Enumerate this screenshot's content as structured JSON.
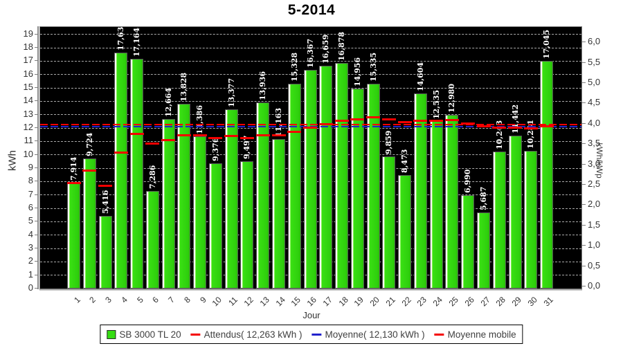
{
  "title": "5-2014",
  "axes": {
    "x_label": "Jour",
    "y_left_label": "kWh",
    "y_right_label": "kWh/kWp",
    "y_left_ticks": [
      "0",
      "1",
      "2",
      "3",
      "4",
      "5",
      "6",
      "7",
      "8",
      "9",
      "10",
      "11",
      "12",
      "13",
      "14",
      "15",
      "16",
      "17",
      "18",
      "19"
    ],
    "y_right_ticks": [
      "0,0",
      "0,5",
      "1,0",
      "1,5",
      "2,0",
      "2,5",
      "3,0",
      "3,5",
      "4,0",
      "4,5",
      "5,0",
      "5,5",
      "6,0"
    ]
  },
  "legend": {
    "items": [
      {
        "label": "SB 3000 TL 20",
        "swatch": "green-square"
      },
      {
        "label": "Attendus( 12,263 kWh )",
        "swatch": "red-dash"
      },
      {
        "label": "Moyenne( 12,130 kWh )",
        "swatch": "blue-dash"
      },
      {
        "label": "Moyenne mobile",
        "swatch": "red-dash"
      }
    ]
  },
  "colors": {
    "bar_green": "#35dd12",
    "attendus_red": "#f40000",
    "moyenne_blue": "#2222cc",
    "moyenne_mobile_red": "#f40000",
    "plot_background": "#000000",
    "gridline": "#ababab",
    "value_label": "#ffffff"
  },
  "chart_data": {
    "type": "bar",
    "title": "5-2014",
    "xlabel": "Jour",
    "ylabel": "kWh",
    "ylabel_right": "kWh/kWp",
    "ylim_left": [
      0,
      19.55
    ],
    "ylim_right": [
      0,
      6.4
    ],
    "grid": "horizontal-dashed",
    "legend_position": "bottom",
    "categories": [
      "1",
      "2",
      "3",
      "4",
      "5",
      "6",
      "7",
      "8",
      "9",
      "10",
      "11",
      "12",
      "13",
      "14",
      "15",
      "16",
      "17",
      "18",
      "19",
      "20",
      "21",
      "22",
      "23",
      "24",
      "25",
      "26",
      "27",
      "28",
      "29",
      "30",
      "31"
    ],
    "series": [
      {
        "name": "SB 3000 TL 20",
        "type": "bar",
        "color": "#35dd12",
        "values": [
          7.914,
          9.724,
          5.416,
          17.632,
          17.164,
          7.286,
          12.664,
          13.828,
          11.386,
          9.376,
          13.377,
          9.497,
          13.936,
          11.163,
          15.328,
          16.367,
          16.659,
          16.878,
          14.956,
          15.335,
          9.859,
          8.473,
          14.604,
          12.535,
          12.98,
          6.99,
          5.687,
          10.243,
          11.442,
          10.281,
          17.045
        ],
        "value_labels": [
          "7,914",
          "9,724",
          "5,416",
          "17,632",
          "17,164",
          "7,286",
          "12,664",
          "13,828",
          "11,386",
          "9,376",
          "13,377",
          "9,497",
          "13,936",
          "11,163",
          "15,328",
          "16,367",
          "16,659",
          "16,878",
          "14,956",
          "15,335",
          "9,859",
          "8,473",
          "14,604",
          "12,535",
          "12,980",
          "6,990",
          "5,687",
          "10,243",
          "11,442",
          "10,281",
          "17,045"
        ]
      },
      {
        "name": "Attendus( 12,263 kWh )",
        "type": "hline",
        "style": "dashed",
        "color": "#f40000",
        "value": 12.263
      },
      {
        "name": "Moyenne( 12,130 kWh )",
        "type": "hline",
        "style": "dashed",
        "color": "#2222cc",
        "value": 12.13
      },
      {
        "name": "Moyenne mobile",
        "type": "segments",
        "color": "#f40000",
        "values": [
          7.914,
          8.819,
          7.685,
          10.172,
          11.57,
          10.856,
          11.114,
          11.454,
          11.446,
          11.239,
          11.433,
          11.272,
          11.477,
          11.455,
          11.713,
          12.004,
          12.277,
          12.533,
          12.661,
          12.794,
          12.654,
          12.464,
          12.557,
          12.557,
          12.573,
          12.359,
          12.112,
          12.045,
          12.024,
          11.966,
          12.13
        ]
      }
    ]
  }
}
